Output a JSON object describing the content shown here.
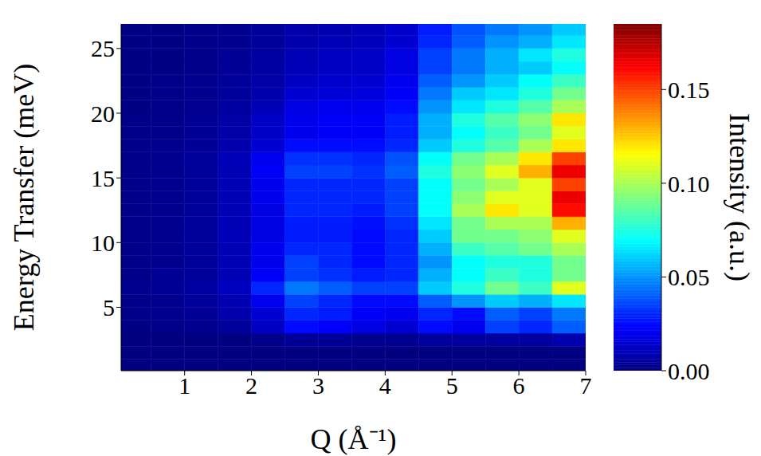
{
  "chart_data": {
    "type": "heatmap",
    "xlabel": "Q (Å⁻¹)",
    "ylabel": "Energy Transfer (meV)",
    "xlim": [
      0.05,
      7
    ],
    "xticks": [
      1,
      2,
      3,
      4,
      5,
      6,
      7
    ],
    "ylim": [
      0.1,
      26.9
    ],
    "yticks": [
      5,
      10,
      15,
      20,
      25
    ],
    "x_edges": [
      0.05,
      0.5,
      1,
      1.5,
      2,
      2.5,
      3,
      3.5,
      4,
      4.5,
      5,
      5.5,
      6,
      6.5,
      7
    ],
    "y_edges": [
      0.1,
      1,
      2,
      3,
      4,
      5,
      6,
      7,
      8,
      9,
      10,
      11,
      12,
      13,
      14,
      15,
      16,
      17,
      18,
      19,
      20,
      21,
      22,
      23,
      24,
      25,
      26,
      26.9
    ],
    "values": [
      [
        0,
        0,
        0,
        0,
        0,
        0,
        0,
        0,
        0,
        0,
        0,
        0,
        0,
        0
      ],
      [
        0,
        0,
        0,
        0,
        0,
        0,
        0,
        0,
        0,
        0,
        0,
        0,
        0,
        0
      ],
      [
        0,
        0,
        0,
        0,
        0.002,
        0.004,
        0.004,
        0.003,
        0.003,
        0.005,
        0.006,
        0.006,
        0.006,
        0.008
      ],
      [
        0.001,
        0.002,
        0.003,
        0.005,
        0.012,
        0.025,
        0.022,
        0.018,
        0.015,
        0.025,
        0.02,
        0.035,
        0.03,
        0.04
      ],
      [
        0.002,
        0.003,
        0.004,
        0.008,
        0.015,
        0.03,
        0.028,
        0.022,
        0.02,
        0.03,
        0.025,
        0.04,
        0.035,
        0.045
      ],
      [
        0.002,
        0.003,
        0.005,
        0.009,
        0.02,
        0.035,
        0.03,
        0.025,
        0.025,
        0.04,
        0.05,
        0.06,
        0.055,
        0.065
      ],
      [
        0.003,
        0.004,
        0.006,
        0.012,
        0.03,
        0.045,
        0.04,
        0.035,
        0.035,
        0.06,
        0.075,
        0.09,
        0.08,
        0.11
      ],
      [
        0.002,
        0.004,
        0.005,
        0.01,
        0.022,
        0.035,
        0.032,
        0.028,
        0.03,
        0.055,
        0.07,
        0.08,
        0.075,
        0.09
      ],
      [
        0.002,
        0.003,
        0.005,
        0.01,
        0.02,
        0.035,
        0.03,
        0.025,
        0.03,
        0.05,
        0.07,
        0.075,
        0.075,
        0.09
      ],
      [
        0.002,
        0.003,
        0.005,
        0.01,
        0.02,
        0.03,
        0.03,
        0.025,
        0.03,
        0.055,
        0.08,
        0.085,
        0.09,
        0.1
      ],
      [
        0.002,
        0.003,
        0.005,
        0.01,
        0.018,
        0.028,
        0.028,
        0.025,
        0.03,
        0.06,
        0.09,
        0.09,
        0.095,
        0.11
      ],
      [
        0.002,
        0.003,
        0.005,
        0.01,
        0.018,
        0.028,
        0.028,
        0.026,
        0.032,
        0.065,
        0.09,
        0.1,
        0.1,
        0.13
      ],
      [
        0.002,
        0.003,
        0.005,
        0.01,
        0.018,
        0.03,
        0.03,
        0.028,
        0.035,
        0.07,
        0.1,
        0.12,
        0.11,
        0.16
      ],
      [
        0.002,
        0.003,
        0.005,
        0.01,
        0.02,
        0.03,
        0.03,
        0.03,
        0.035,
        0.07,
        0.095,
        0.11,
        0.11,
        0.165
      ],
      [
        0.002,
        0.003,
        0.005,
        0.01,
        0.02,
        0.03,
        0.03,
        0.03,
        0.035,
        0.07,
        0.09,
        0.1,
        0.11,
        0.15
      ],
      [
        0.002,
        0.003,
        0.005,
        0.01,
        0.022,
        0.035,
        0.035,
        0.032,
        0.04,
        0.075,
        0.095,
        0.11,
        0.13,
        0.165
      ],
      [
        0.002,
        0.003,
        0.005,
        0.01,
        0.02,
        0.032,
        0.032,
        0.03,
        0.038,
        0.07,
        0.09,
        0.1,
        0.12,
        0.15
      ],
      [
        0.002,
        0.003,
        0.004,
        0.008,
        0.015,
        0.025,
        0.025,
        0.025,
        0.03,
        0.06,
        0.075,
        0.085,
        0.1,
        0.12
      ],
      [
        0.002,
        0.002,
        0.004,
        0.007,
        0.013,
        0.02,
        0.022,
        0.022,
        0.028,
        0.055,
        0.07,
        0.08,
        0.09,
        0.11
      ],
      [
        0.002,
        0.002,
        0.004,
        0.007,
        0.013,
        0.02,
        0.022,
        0.022,
        0.028,
        0.055,
        0.075,
        0.085,
        0.095,
        0.12
      ],
      [
        0.001,
        0.002,
        0.003,
        0.006,
        0.01,
        0.018,
        0.02,
        0.02,
        0.025,
        0.05,
        0.065,
        0.075,
        0.085,
        0.1
      ],
      [
        0.001,
        0.002,
        0.003,
        0.005,
        0.008,
        0.015,
        0.016,
        0.017,
        0.022,
        0.045,
        0.06,
        0.065,
        0.075,
        0.09
      ],
      [
        0.001,
        0.002,
        0.003,
        0.005,
        0.007,
        0.012,
        0.014,
        0.015,
        0.02,
        0.04,
        0.05,
        0.06,
        0.07,
        0.08
      ],
      [
        0.001,
        0.001,
        0.002,
        0.004,
        0.006,
        0.01,
        0.012,
        0.013,
        0.018,
        0.035,
        0.045,
        0.055,
        0.06,
        0.07
      ],
      [
        0.001,
        0.001,
        0.002,
        0.004,
        0.006,
        0.01,
        0.012,
        0.013,
        0.018,
        0.035,
        0.045,
        0.055,
        0.065,
        0.075
      ],
      [
        0.001,
        0.001,
        0.002,
        0.003,
        0.005,
        0.008,
        0.01,
        0.011,
        0.015,
        0.03,
        0.04,
        0.05,
        0.055,
        0.065
      ],
      [
        0.001,
        0.001,
        0.002,
        0.003,
        0.005,
        0.008,
        0.009,
        0.01,
        0.014,
        0.028,
        0.038,
        0.045,
        0.05,
        0.06
      ]
    ],
    "colorbar": {
      "label": "Intensity (a.u.)",
      "range": [
        0,
        0.185
      ],
      "ticks": [
        {
          "value": 0,
          "label": "0.00"
        },
        {
          "value": 0.05,
          "label": "0.05"
        },
        {
          "value": 0.1,
          "label": "0.10"
        },
        {
          "value": 0.15,
          "label": "0.15"
        }
      ]
    }
  }
}
